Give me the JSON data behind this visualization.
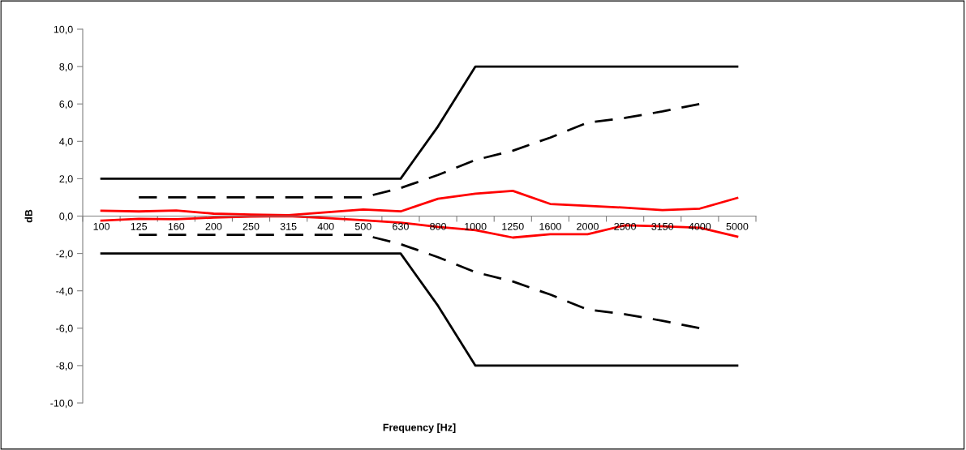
{
  "chart_data": {
    "type": "line",
    "xlabel": "Frequency [Hz]",
    "ylabel": "dB",
    "categories": [
      "100",
      "125",
      "160",
      "200",
      "250",
      "315",
      "400",
      "500",
      "630",
      "800",
      "1000",
      "1250",
      "1600",
      "2000",
      "2500",
      "3150",
      "4000",
      "5000"
    ],
    "ylim": [
      -10,
      10
    ],
    "yticks": [
      {
        "value": -10,
        "label": "-10,0"
      },
      {
        "value": -8,
        "label": "-8,0"
      },
      {
        "value": -6,
        "label": "-6,0"
      },
      {
        "value": -4,
        "label": "-4,0"
      },
      {
        "value": -2,
        "label": "-2,0"
      },
      {
        "value": 0,
        "label": "0,0"
      },
      {
        "value": 2,
        "label": "2,0"
      },
      {
        "value": 4,
        "label": "4,0"
      },
      {
        "value": 6,
        "label": "6,0"
      },
      {
        "value": 8,
        "label": "8,0"
      },
      {
        "value": 10,
        "label": "10,0"
      }
    ],
    "grid": false,
    "marker": "none",
    "series": [
      {
        "color": "#000000",
        "line_style": "solid",
        "values": [
          2,
          2,
          2,
          2,
          2,
          2,
          2,
          2,
          2,
          4.8,
          8,
          8,
          8,
          8,
          8,
          8,
          8,
          8
        ]
      },
      {
        "color": "#000000",
        "line_style": "solid",
        "values": [
          -2,
          -2,
          -2,
          -2,
          -2,
          -2,
          -2,
          -2,
          -2,
          -4.8,
          -8,
          -8,
          -8,
          -8,
          -8,
          -8,
          -8,
          -8
        ]
      },
      {
        "color": "#000000",
        "line_style": "dashed",
        "values": [
          null,
          1,
          1,
          1,
          1,
          1,
          1,
          1,
          1.5,
          2.2,
          3,
          3.5,
          4.2,
          5,
          5.25,
          5.6,
          6,
          null
        ]
      },
      {
        "color": "#000000",
        "line_style": "dashed",
        "values": [
          null,
          -1,
          -1,
          -1,
          -1,
          -1,
          -1,
          -1,
          -1.5,
          -2.2,
          -3,
          -3.5,
          -4.2,
          -5,
          -5.25,
          -5.6,
          -6,
          null
        ]
      },
      {
        "color": "#ff0000",
        "line_style": "solid",
        "values": [
          0.29,
          0.25,
          0.3,
          0.13,
          0.08,
          0.05,
          0.2,
          0.35,
          0.25,
          0.93,
          1.2,
          1.35,
          0.65,
          0.55,
          0.45,
          0.32,
          0.4,
          0.97
        ]
      },
      {
        "color": "#ff0000",
        "line_style": "solid",
        "values": [
          -0.24,
          -0.15,
          -0.17,
          -0.08,
          -0.03,
          0,
          -0.1,
          -0.22,
          -0.35,
          -0.58,
          -0.75,
          -1.15,
          -0.97,
          -0.97,
          -0.49,
          -0.55,
          -0.62,
          -1.1
        ]
      }
    ]
  }
}
